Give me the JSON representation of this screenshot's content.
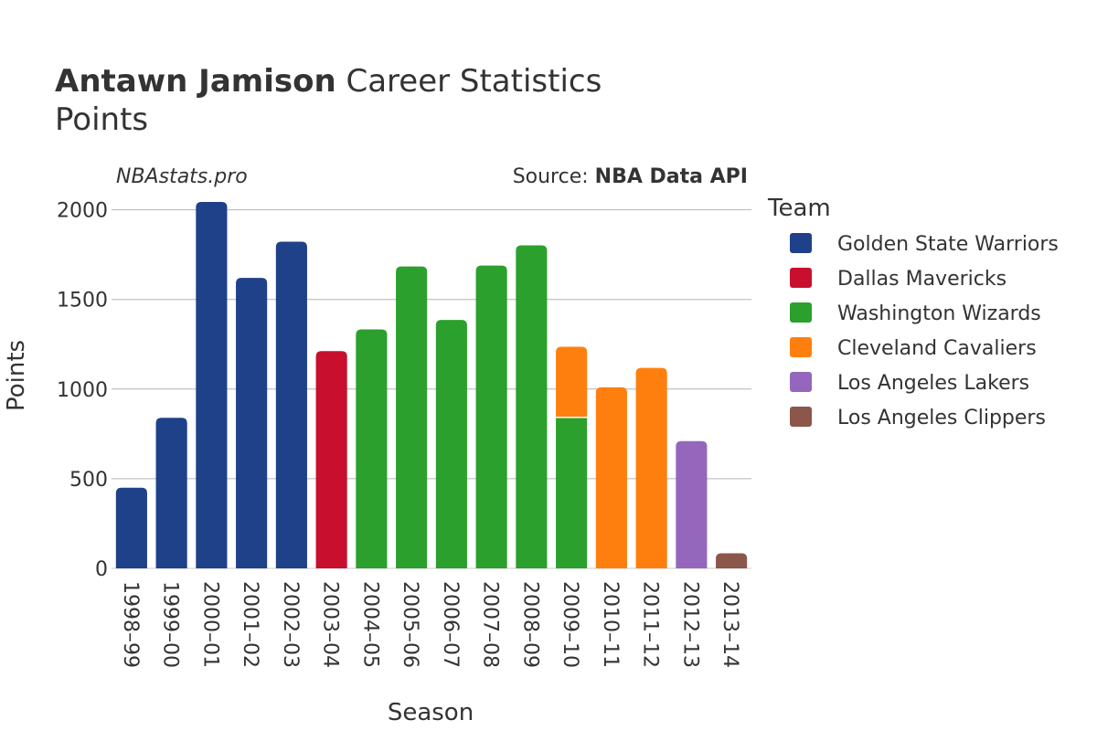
{
  "title": {
    "bold": "Antawn Jamison",
    "rest": " Career Statistics",
    "line2": "Points"
  },
  "annotations": {
    "site": "NBAstats.pro",
    "source_label": "Source: ",
    "source_value": "NBA Data API"
  },
  "legend_title": "Team",
  "chart_data": {
    "type": "bar",
    "stacked": true,
    "xlabel": "Season",
    "ylabel": "Points",
    "ylim": [
      0,
      2100
    ],
    "yticks": [
      0,
      500,
      1000,
      1500,
      2000
    ],
    "grid": true,
    "legend_position": "right",
    "categories": [
      "1998–99",
      "1999–00",
      "2000–01",
      "2001–02",
      "2002–03",
      "2003–04",
      "2004–05",
      "2005–06",
      "2006–07",
      "2007–08",
      "2008–09",
      "2009–10",
      "2010–11",
      "2011–12",
      "2012–13",
      "2013–14"
    ],
    "series": [
      {
        "name": "Golden State Warriors",
        "color": "#1f4189",
        "values": [
          450,
          840,
          2044,
          1620,
          1822,
          null,
          null,
          null,
          null,
          null,
          null,
          null,
          null,
          null,
          null,
          null
        ]
      },
      {
        "name": "Dallas Mavericks",
        "color": "#c8102e",
        "values": [
          null,
          null,
          null,
          null,
          null,
          1212,
          null,
          null,
          null,
          null,
          null,
          null,
          null,
          null,
          null,
          null
        ]
      },
      {
        "name": "Washington Wizards",
        "color": "#2ca02c",
        "values": [
          null,
          null,
          null,
          null,
          null,
          null,
          1333,
          1684,
          1386,
          1689,
          1802,
          842,
          null,
          null,
          null,
          null
        ]
      },
      {
        "name": "Cleveland Cavaliers",
        "color": "#ff7f0e",
        "values": [
          null,
          null,
          null,
          null,
          null,
          null,
          null,
          null,
          null,
          null,
          null,
          394,
          1010,
          1118,
          null,
          null
        ]
      },
      {
        "name": "Los Angeles Lakers",
        "color": "#9467bd",
        "values": [
          null,
          null,
          null,
          null,
          null,
          null,
          null,
          null,
          null,
          null,
          null,
          null,
          null,
          null,
          710,
          null
        ]
      },
      {
        "name": "Los Angeles Clippers",
        "color": "#8c564b",
        "values": [
          null,
          null,
          null,
          null,
          null,
          null,
          null,
          null,
          null,
          null,
          null,
          null,
          null,
          null,
          null,
          84
        ]
      }
    ]
  }
}
